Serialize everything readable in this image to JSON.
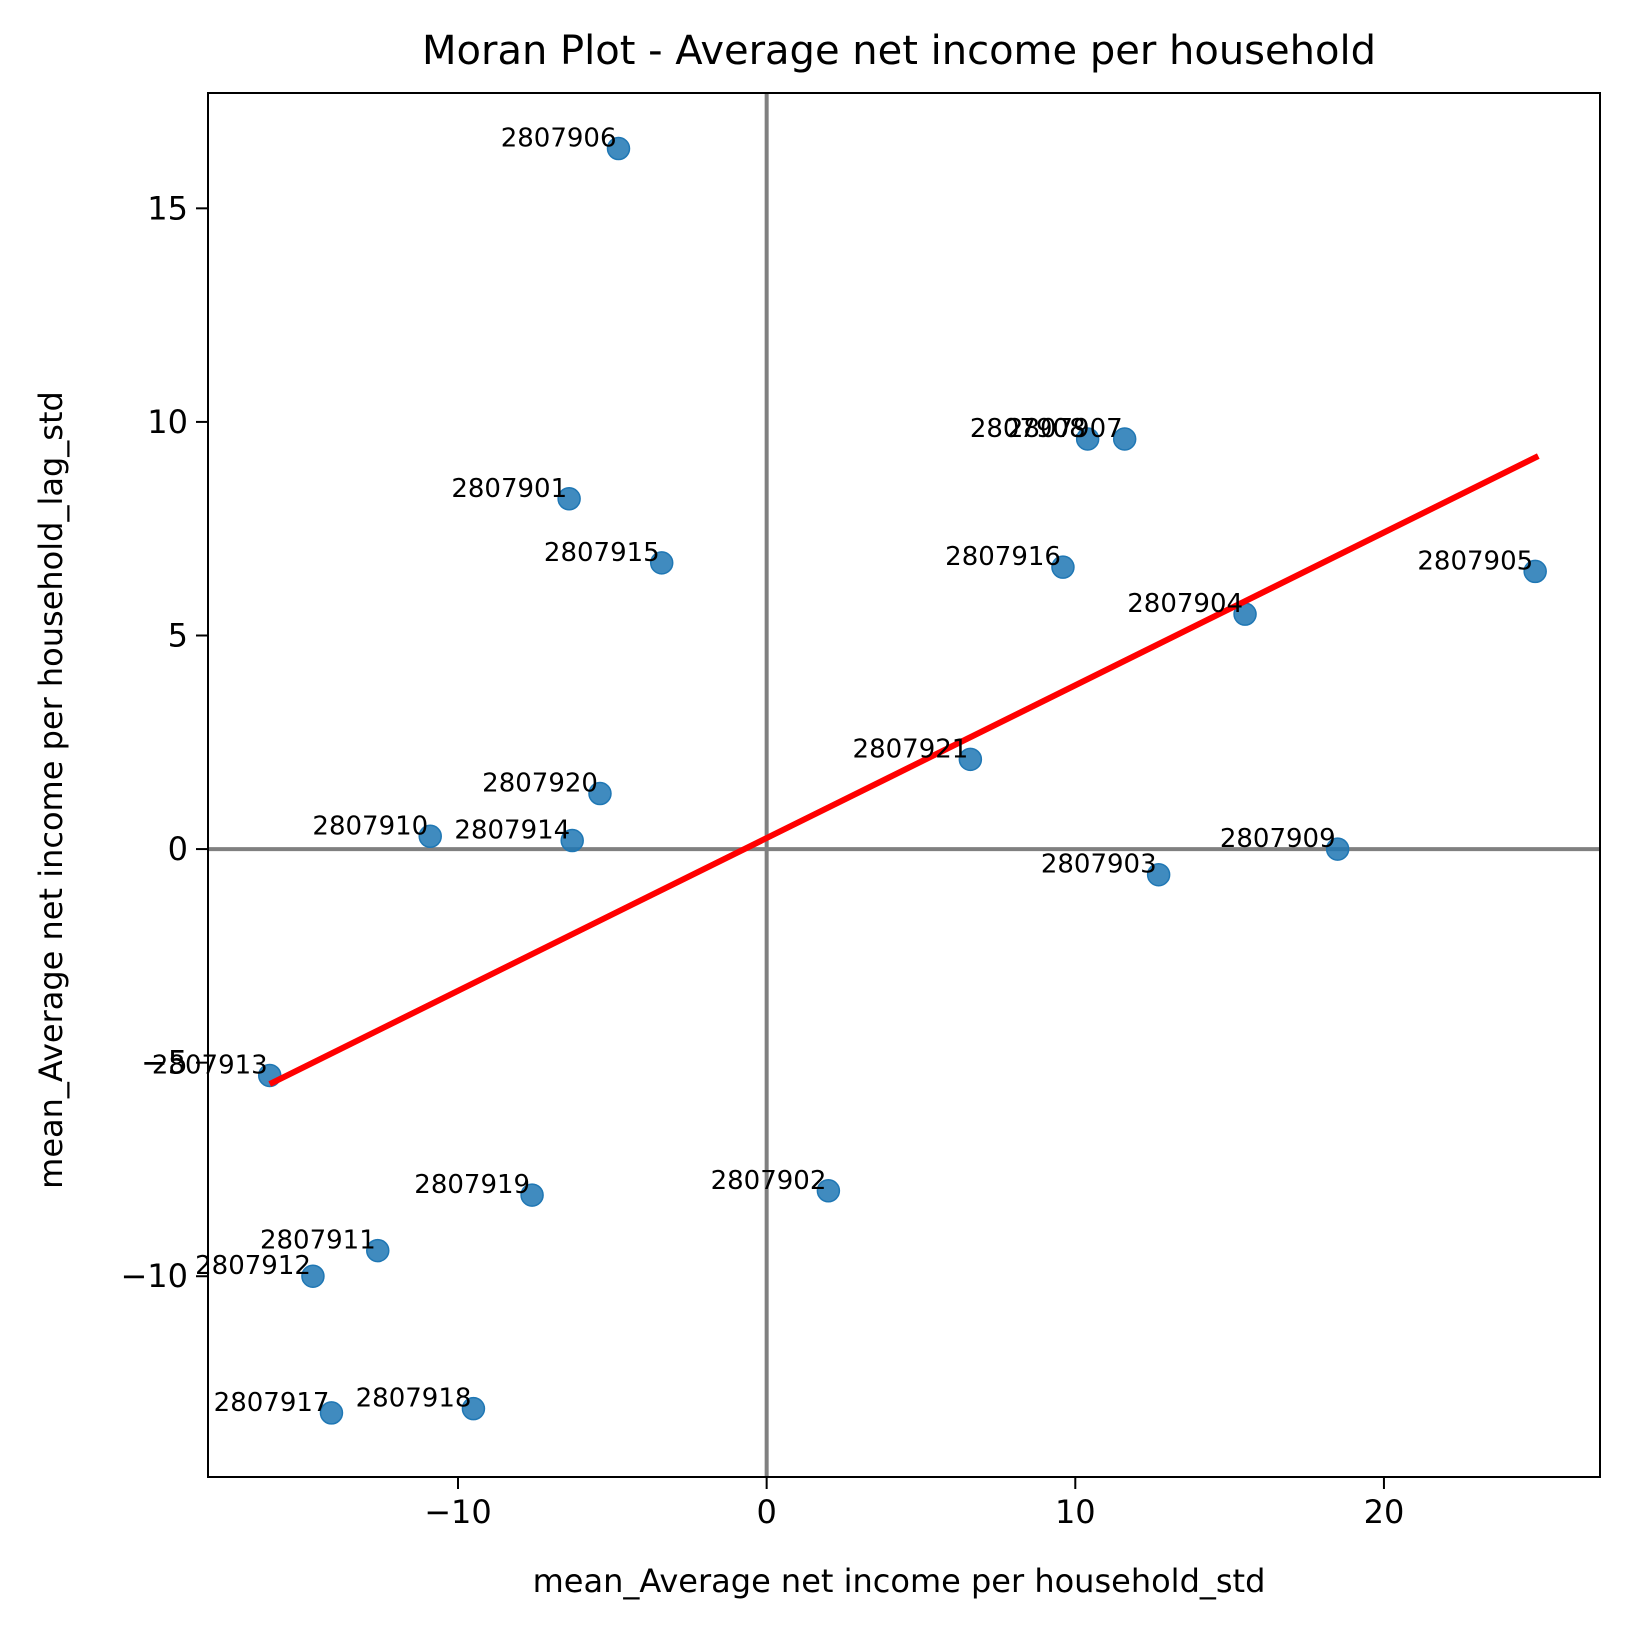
{
  "chart_data": {
    "type": "scatter",
    "title": "Moran Plot - Average net income per household",
    "xlabel": "mean_Average net income per household_std",
    "ylabel": "mean_Average net income per household_lag_std",
    "xlim": [
      -18.1,
      27.0
    ],
    "ylim": [
      -14.7,
      17.7
    ],
    "xticks": [
      -10,
      0,
      10,
      20
    ],
    "yticks": [
      -10,
      -5,
      0,
      5,
      10,
      15
    ],
    "xtick_labels": [
      "−10",
      "0",
      "10",
      "20"
    ],
    "ytick_labels": [
      "−10",
      "−5",
      "0",
      "5",
      "10",
      "15"
    ],
    "reference_lines": {
      "x": 0,
      "y": 0,
      "color": "#808080"
    },
    "grid": false,
    "point_color": "#1f77b4",
    "points": [
      {
        "label": "2807901",
        "x": -6.4,
        "y": 8.2
      },
      {
        "label": "2807902",
        "x": 2.0,
        "y": -8.0
      },
      {
        "label": "2807903",
        "x": 12.7,
        "y": -0.6
      },
      {
        "label": "2807904",
        "x": 15.5,
        "y": 5.5
      },
      {
        "label": "2807905",
        "x": 24.9,
        "y": 6.5
      },
      {
        "label": "2807906",
        "x": -4.8,
        "y": 16.4
      },
      {
        "label": "2807907",
        "x": 11.6,
        "y": 9.6
      },
      {
        "label": "2807908",
        "x": 10.4,
        "y": 9.6
      },
      {
        "label": "2807909",
        "x": 18.5,
        "y": 0.0
      },
      {
        "label": "2807910",
        "x": -10.9,
        "y": 0.3
      },
      {
        "label": "2807911",
        "x": -12.6,
        "y": -9.4
      },
      {
        "label": "2807912",
        "x": -14.7,
        "y": -10.0
      },
      {
        "label": "2807913",
        "x": -16.1,
        "y": -5.3
      },
      {
        "label": "2807914",
        "x": -6.3,
        "y": 0.2
      },
      {
        "label": "2807915",
        "x": -3.4,
        "y": 6.7
      },
      {
        "label": "2807916",
        "x": 9.6,
        "y": 6.6
      },
      {
        "label": "2807917",
        "x": -14.1,
        "y": -13.2
      },
      {
        "label": "2807918",
        "x": -9.5,
        "y": -13.1
      },
      {
        "label": "2807919",
        "x": -7.6,
        "y": -8.1
      },
      {
        "label": "2807920",
        "x": -5.4,
        "y": 1.3
      },
      {
        "label": "2807921",
        "x": 6.6,
        "y": 2.1
      }
    ],
    "regression_line": {
      "color": "#ff0000",
      "x": [
        -16.1,
        25.0
      ],
      "y": [
        -5.5,
        9.2
      ]
    }
  }
}
